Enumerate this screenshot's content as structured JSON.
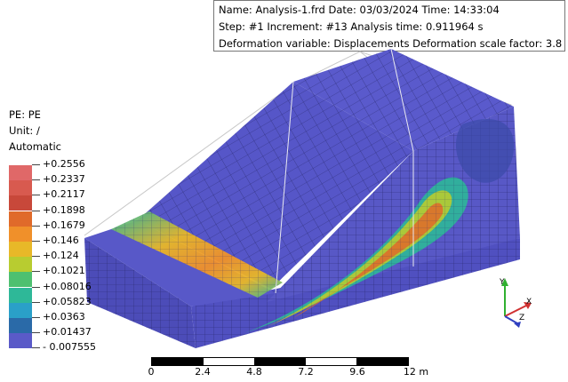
{
  "info": {
    "line1": "Name: Analysis-1.frd   Date: 03/03/2024   Time: 14:33:04",
    "line2": "Step: #1   Increment: #13   Analysis time: 0.911964 s",
    "line3": "Deformation variable: Displacements   Deformation scale factor: 3.8"
  },
  "legend": {
    "title": "PE: PE",
    "unit": "Unit: /",
    "mode": "Automatic",
    "entries": [
      {
        "label": "+0.2556",
        "color": "#e06868"
      },
      {
        "label": "+0.2337",
        "color": "#d85a4f"
      },
      {
        "label": "+0.2117",
        "color": "#c8483a"
      },
      {
        "label": "+0.1898",
        "color": "#e06a2a"
      },
      {
        "label": "+0.1679",
        "color": "#f0902a"
      },
      {
        "label": "+0.146",
        "color": "#e8b828"
      },
      {
        "label": "+0.124",
        "color": "#b8cc30"
      },
      {
        "label": "+0.1021",
        "color": "#4ec070"
      },
      {
        "label": "+0.08016",
        "color": "#2eb898"
      },
      {
        "label": "+0.05823",
        "color": "#2aa0c8"
      },
      {
        "label": "+0.0363",
        "color": "#2a6aa8"
      },
      {
        "label": "+0.01437",
        "color": "#3a3f98"
      },
      {
        "label": "- 0.007555",
        "color": "#5a5ac8"
      }
    ]
  },
  "scale": {
    "labels": [
      "0",
      "2.4",
      "4.8",
      "7.2",
      "9.6",
      "12 m"
    ]
  },
  "axes": {
    "y": "Y",
    "x": "X",
    "z": "Z"
  },
  "colors": {
    "mesh_base": "#5252c4",
    "mesh_line": "#2a2a6a",
    "band_hot": "#f0902a",
    "band_mid": "#2eb898"
  }
}
